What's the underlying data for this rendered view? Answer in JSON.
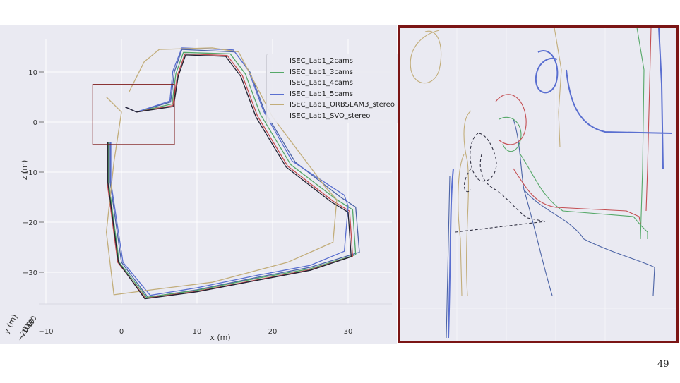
{
  "slide": {
    "page_number": "49"
  },
  "colors": {
    "inset_border": "#7b1515",
    "panel_bg": "#eaeaf2"
  },
  "chart_data": [
    {
      "type": "line",
      "subtype": "3d-trajectory-top-view",
      "xlabel": "x (m)",
      "ylabel": "z (m)",
      "zlabel": "y (m)",
      "x_ticks": [
        "−10",
        "0",
        "10",
        "20",
        "30"
      ],
      "z_ticks": [
        "10",
        "0",
        "−10",
        "−20",
        "−30"
      ],
      "y_ticks": [
        "−20",
        "−10",
        "0",
        "10",
        "20"
      ],
      "xlim": [
        -10,
        30
      ],
      "zlim": [
        -30,
        10
      ],
      "legend_position": "top-right",
      "grid": true,
      "series": [
        {
          "name": "ISEC_Lab1_2cams",
          "color": "#4c64a6",
          "points": [
            [
              -1.5,
              -4
            ],
            [
              -1.5,
              -12
            ],
            [
              0,
              -28
            ],
            [
              3.5,
              -35
            ],
            [
              10,
              -33.5
            ],
            [
              18,
              -31
            ],
            [
              25,
              -29
            ],
            [
              31.5,
              -26
            ],
            [
              31,
              -17
            ],
            [
              29,
              -15
            ],
            [
              23,
              -8
            ],
            [
              19,
              2
            ],
            [
              17,
              10
            ],
            [
              15,
              14
            ],
            [
              8,
              14.5
            ],
            [
              7,
              10
            ],
            [
              6.5,
              4
            ],
            [
              2,
              2
            ],
            [
              0.5,
              3
            ]
          ]
        },
        {
          "name": "ISEC_Lab1_3cams",
          "color": "#55a868",
          "points": [
            [
              -1.7,
              -4
            ],
            [
              -1.7,
              -12
            ],
            [
              -0.3,
              -28
            ],
            [
              3.3,
              -35
            ],
            [
              10,
              -33.6
            ],
            [
              18,
              -31.2
            ],
            [
              25,
              -29.3
            ],
            [
              31,
              -26.5
            ],
            [
              30.6,
              -17.5
            ],
            [
              28.5,
              -15.5
            ],
            [
              22.4,
              -8.5
            ],
            [
              18.4,
              1.5
            ],
            [
              16.4,
              9.6
            ],
            [
              14.4,
              13.6
            ],
            [
              8.2,
              13.9
            ],
            [
              7.2,
              9.6
            ],
            [
              6.7,
              3.6
            ],
            [
              2,
              2
            ],
            [
              0.5,
              3
            ]
          ]
        },
        {
          "name": "ISEC_Lab1_4cams",
          "color": "#c44e52",
          "points": [
            [
              -1.9,
              -4
            ],
            [
              -1.9,
              -12
            ],
            [
              -0.5,
              -28
            ],
            [
              3.2,
              -35.2
            ],
            [
              10,
              -33.8
            ],
            [
              18,
              -31.5
            ],
            [
              25,
              -29.5
            ],
            [
              30.6,
              -26.8
            ],
            [
              30.2,
              -17.8
            ],
            [
              28,
              -15.8
            ],
            [
              22,
              -8.8
            ],
            [
              18,
              1.2
            ],
            [
              16,
              9.3
            ],
            [
              14,
              13.3
            ],
            [
              8.4,
              13.6
            ],
            [
              7.4,
              9.3
            ],
            [
              6.8,
              3.3
            ],
            [
              2,
              2
            ],
            [
              0.5,
              3
            ]
          ]
        },
        {
          "name": "ISEC_Lab1_5cams",
          "color": "#5a6fd0",
          "points": [
            [
              -1.4,
              -4
            ],
            [
              -1.4,
              -12
            ],
            [
              0.2,
              -28
            ],
            [
              3.8,
              -34.6
            ],
            [
              10,
              -33.1
            ],
            [
              18,
              -30.6
            ],
            [
              25,
              -28.6
            ],
            [
              29.5,
              -25.8
            ],
            [
              30,
              -16.8
            ],
            [
              29.5,
              -14.6
            ],
            [
              22.6,
              -7.8
            ],
            [
              18.8,
              2.2
            ],
            [
              16.8,
              10.3
            ],
            [
              14.8,
              14.4
            ],
            [
              8,
              14.8
            ],
            [
              6.8,
              10.2
            ],
            [
              6.4,
              4.2
            ],
            [
              2,
              2
            ],
            [
              0.5,
              3
            ]
          ]
        },
        {
          "name": "ISEC_Lab1_ORBSLAM3_stereo",
          "color": "#c2ad7a",
          "points": [
            [
              1,
              6
            ],
            [
              3,
              12
            ],
            [
              5,
              14.5
            ],
            [
              12,
              14.8
            ],
            [
              15.5,
              14
            ],
            [
              20,
              1
            ],
            [
              27,
              -13
            ],
            [
              28.5,
              -15.5
            ],
            [
              28,
              -24
            ],
            [
              22,
              -28
            ],
            [
              12,
              -32
            ],
            [
              4,
              -33.5
            ],
            [
              -1,
              -34.5
            ],
            [
              -2,
              -22
            ],
            [
              -1,
              -8
            ],
            [
              0,
              2
            ],
            [
              -2,
              5
            ]
          ]
        },
        {
          "name": "ISEC_Lab1_SVO_stereo",
          "color": "#222233",
          "points": [
            [
              -1.8,
              -4
            ],
            [
              -1.8,
              -12
            ],
            [
              -0.4,
              -28
            ],
            [
              3.1,
              -35.3
            ],
            [
              10,
              -33.9
            ],
            [
              18,
              -31.6
            ],
            [
              25,
              -29.6
            ],
            [
              30.4,
              -26.9
            ],
            [
              30,
              -18
            ],
            [
              27.8,
              -16
            ],
            [
              21.8,
              -9
            ],
            [
              17.8,
              1
            ],
            [
              15.8,
              9.1
            ],
            [
              13.8,
              13.1
            ],
            [
              8.5,
              13.4
            ],
            [
              7.5,
              9.1
            ],
            [
              6.9,
              3.1
            ],
            [
              2,
              2
            ],
            [
              0.5,
              3
            ]
          ]
        }
      ],
      "inset_region": {
        "x": [
          -3.8,
          7
        ],
        "z": [
          -4.5,
          7.5
        ]
      }
    },
    {
      "type": "line",
      "subtype": "zoomed-inset",
      "series": [
        {
          "name": "ISEC_Lab1_2cams",
          "color": "#4c64a6"
        },
        {
          "name": "ISEC_Lab1_3cams",
          "color": "#55a868"
        },
        {
          "name": "ISEC_Lab1_4cams",
          "color": "#c44e52"
        },
        {
          "name": "ISEC_Lab1_5cams",
          "color": "#5a6fd0"
        },
        {
          "name": "ISEC_Lab1_ORBSLAM3_stereo",
          "color": "#c2ad7a"
        },
        {
          "name": "ISEC_Lab1_SVO_stereo",
          "color": "#333344"
        }
      ]
    }
  ]
}
